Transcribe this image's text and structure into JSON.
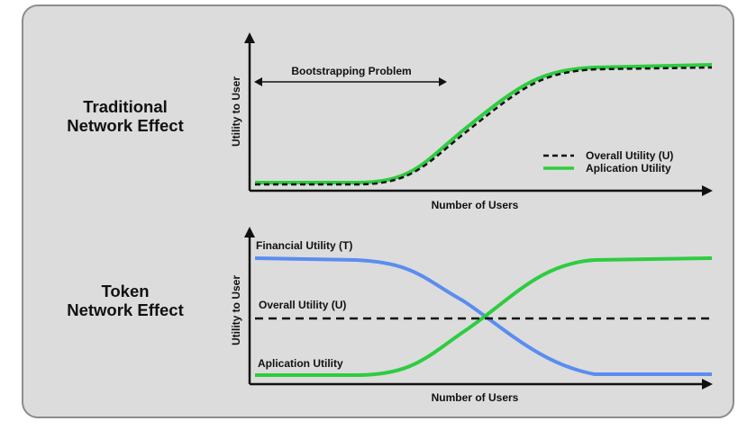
{
  "top_section": {
    "title_line1": "Traditional",
    "title_line2": "Network Effect",
    "ylabel": "Utility to User",
    "xlabel": "Number of Users",
    "annotation": "Bootstrapping Problem",
    "legend": [
      {
        "label": "Overall Utility (U)",
        "style": "dashed",
        "color": "#111111"
      },
      {
        "label": "Aplication Utility",
        "style": "solid",
        "color": "#2ecc40"
      }
    ]
  },
  "bottom_section": {
    "title_line1": "Token",
    "title_line2": "Network Effect",
    "ylabel": "Utility to User",
    "xlabel": "Number of Users",
    "series_labels": {
      "financial": "Financial Utility (T)",
      "overall": "Overall Utility (U)",
      "application": "Aplication Utility"
    }
  },
  "colors": {
    "panel_bg": "#dcdcdc",
    "panel_border": "#8c8c8c",
    "green": "#2ecc40",
    "blue": "#5b8def",
    "black": "#111111"
  }
}
